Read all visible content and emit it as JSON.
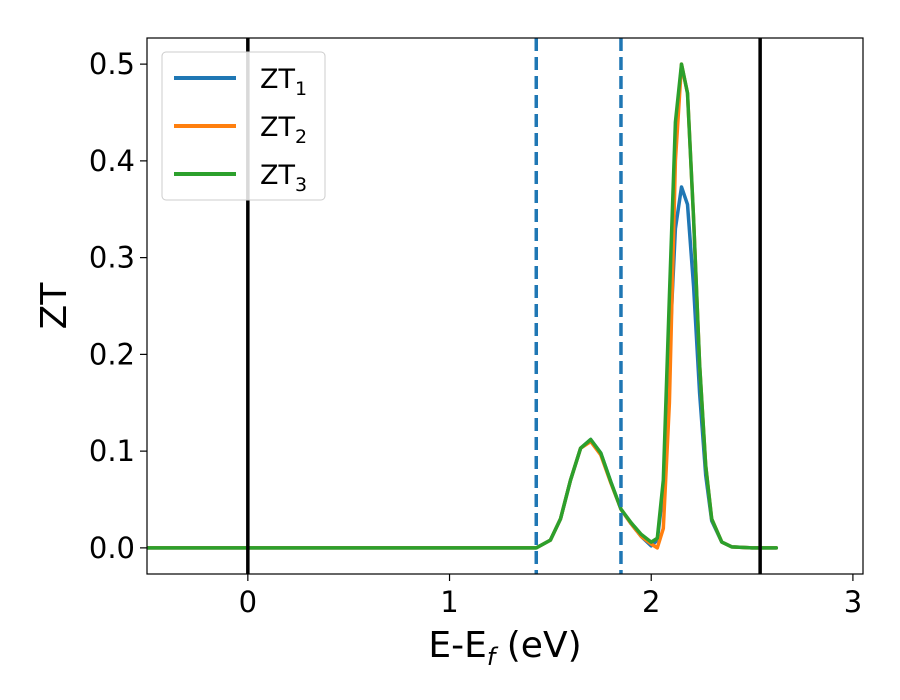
{
  "chart_data": {
    "type": "line",
    "xlabel_main": "E-E",
    "xlabel_sub": "f",
    "xlabel_unit": " (eV)",
    "ylabel": "ZT",
    "xlim": [
      -0.5,
      3.05
    ],
    "ylim": [
      -0.027,
      0.527
    ],
    "xticks": [
      0,
      1,
      2,
      3
    ],
    "yticks": [
      0.0,
      0.1,
      0.2,
      0.3,
      0.4,
      0.5
    ],
    "xtick_labels": [
      "0",
      "1",
      "2",
      "3"
    ],
    "ytick_labels": [
      "0.0",
      "0.1",
      "0.2",
      "0.3",
      "0.4",
      "0.5"
    ],
    "grid": false,
    "legend_position": "top-left",
    "vlines": [
      {
        "x": 0.0,
        "style": "solid",
        "color": "#000000"
      },
      {
        "x": 1.43,
        "style": "dashed",
        "color": "#1f77b4"
      },
      {
        "x": 1.85,
        "style": "dashed",
        "color": "#1f77b4"
      },
      {
        "x": 2.54,
        "style": "solid",
        "color": "#000000"
      }
    ],
    "series": [
      {
        "name": "ZT",
        "sub": "1",
        "color": "#1f77b4",
        "x": [
          -0.5,
          0.0,
          0.5,
          1.0,
          1.43,
          1.5,
          1.55,
          1.6,
          1.65,
          1.7,
          1.75,
          1.8,
          1.85,
          1.9,
          1.95,
          2.0,
          2.03,
          2.06,
          2.09,
          2.12,
          2.15,
          2.18,
          2.21,
          2.24,
          2.27,
          2.3,
          2.35,
          2.4,
          2.5,
          2.62
        ],
        "y": [
          0.0,
          0.0,
          0.0,
          0.0,
          0.0,
          0.008,
          0.03,
          0.07,
          0.103,
          0.112,
          0.098,
          0.068,
          0.04,
          0.025,
          0.012,
          0.002,
          0.008,
          0.06,
          0.2,
          0.33,
          0.373,
          0.355,
          0.27,
          0.16,
          0.075,
          0.028,
          0.006,
          0.001,
          0.0,
          0.0
        ]
      },
      {
        "name": "ZT",
        "sub": "2",
        "color": "#ff7f0e",
        "x": [
          -0.5,
          0.0,
          0.5,
          1.0,
          1.43,
          1.5,
          1.55,
          1.6,
          1.65,
          1.7,
          1.75,
          1.8,
          1.85,
          1.9,
          1.95,
          2.0,
          2.03,
          2.06,
          2.09,
          2.12,
          2.15,
          2.18,
          2.21,
          2.24,
          2.27,
          2.3,
          2.35,
          2.4,
          2.5,
          2.62
        ],
        "y": [
          0.0,
          0.0,
          0.0,
          0.0,
          0.0,
          0.008,
          0.03,
          0.07,
          0.103,
          0.11,
          0.096,
          0.067,
          0.04,
          0.025,
          0.012,
          0.004,
          0.0,
          0.02,
          0.15,
          0.4,
          0.5,
          0.47,
          0.34,
          0.19,
          0.085,
          0.03,
          0.006,
          0.001,
          0.0,
          0.0
        ]
      },
      {
        "name": "ZT",
        "sub": "3",
        "color": "#2ca02c",
        "x": [
          -0.5,
          0.0,
          0.5,
          1.0,
          1.43,
          1.5,
          1.55,
          1.6,
          1.65,
          1.7,
          1.75,
          1.8,
          1.85,
          1.9,
          1.95,
          2.0,
          2.03,
          2.06,
          2.09,
          2.12,
          2.15,
          2.18,
          2.21,
          2.24,
          2.27,
          2.3,
          2.35,
          2.4,
          2.5,
          2.62
        ],
        "y": [
          0.0,
          0.0,
          0.0,
          0.0,
          0.0,
          0.008,
          0.03,
          0.07,
          0.103,
          0.112,
          0.098,
          0.068,
          0.04,
          0.026,
          0.014,
          0.006,
          0.01,
          0.07,
          0.26,
          0.44,
          0.5,
          0.47,
          0.34,
          0.19,
          0.085,
          0.03,
          0.006,
          0.001,
          0.0,
          0.0
        ]
      }
    ]
  }
}
